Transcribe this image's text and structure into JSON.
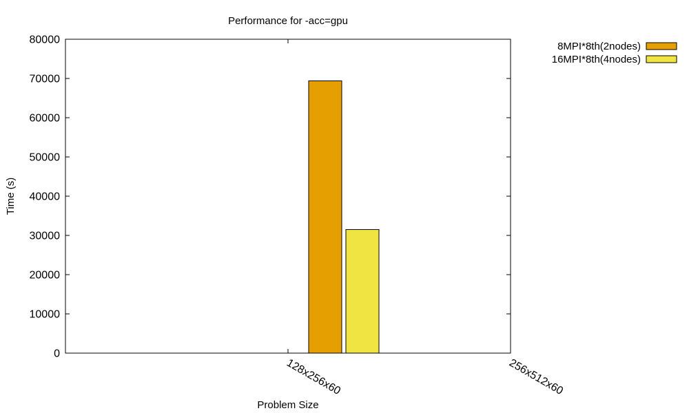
{
  "chart_data": {
    "type": "bar",
    "title": "Performance for -acc=gpu",
    "xlabel": "Problem Size",
    "ylabel": "Time (s)",
    "categories": [
      "128x256x60",
      "256x512x60"
    ],
    "series": [
      {
        "name": "8MPI*8th(2nodes)",
        "values": [
          69400,
          null
        ],
        "color": "#e69f00"
      },
      {
        "name": "16MPI*8th(4nodes)",
        "values": [
          31500,
          null
        ],
        "color": "#f0e442"
      }
    ],
    "ylim": [
      0,
      80000
    ],
    "yticks": [
      0,
      10000,
      20000,
      30000,
      40000,
      50000,
      60000,
      70000,
      80000
    ],
    "grid": false,
    "legend_position": "top-right outside"
  }
}
